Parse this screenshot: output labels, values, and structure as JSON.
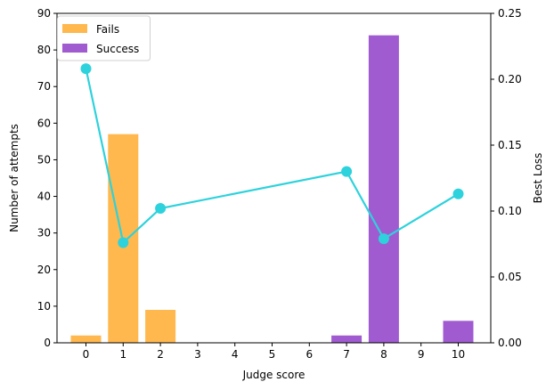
{
  "chart_data": {
    "type": "bar",
    "categories": [
      "0",
      "1",
      "2",
      "3",
      "4",
      "5",
      "6",
      "7",
      "8",
      "9",
      "10"
    ],
    "series": [
      {
        "name": "Fails",
        "axis": "left",
        "type": "bar",
        "color": "#ffb84d",
        "values": [
          2,
          57,
          9,
          0,
          0,
          0,
          0,
          0,
          0,
          0,
          0
        ]
      },
      {
        "name": "Success",
        "axis": "left",
        "type": "bar",
        "color": "#a05bd1",
        "values": [
          0,
          0,
          0,
          0,
          0,
          0,
          0,
          2,
          84,
          0,
          6
        ]
      }
    ],
    "line_series": {
      "axis": "right",
      "type": "line",
      "color": "#2ed2dc",
      "x": [
        0,
        1,
        2,
        7,
        8,
        10
      ],
      "values": [
        0.208,
        0.076,
        0.102,
        0.13,
        0.079,
        0.113
      ]
    },
    "xlabel": "Judge score",
    "ylabel": "Number of attempts",
    "y2label": "Best Loss",
    "ylim": [
      0,
      90
    ],
    "y2lim": [
      0,
      0.25
    ],
    "yticks": [
      0,
      10,
      20,
      30,
      40,
      50,
      60,
      70,
      80,
      90
    ],
    "y2ticks": [
      "0.00",
      "0.05",
      "0.10",
      "0.15",
      "0.20",
      "0.25"
    ],
    "y2tick_values": [
      0,
      0.05,
      0.1,
      0.15,
      0.2,
      0.25
    ],
    "grid": false,
    "legend_position": "top-left"
  }
}
